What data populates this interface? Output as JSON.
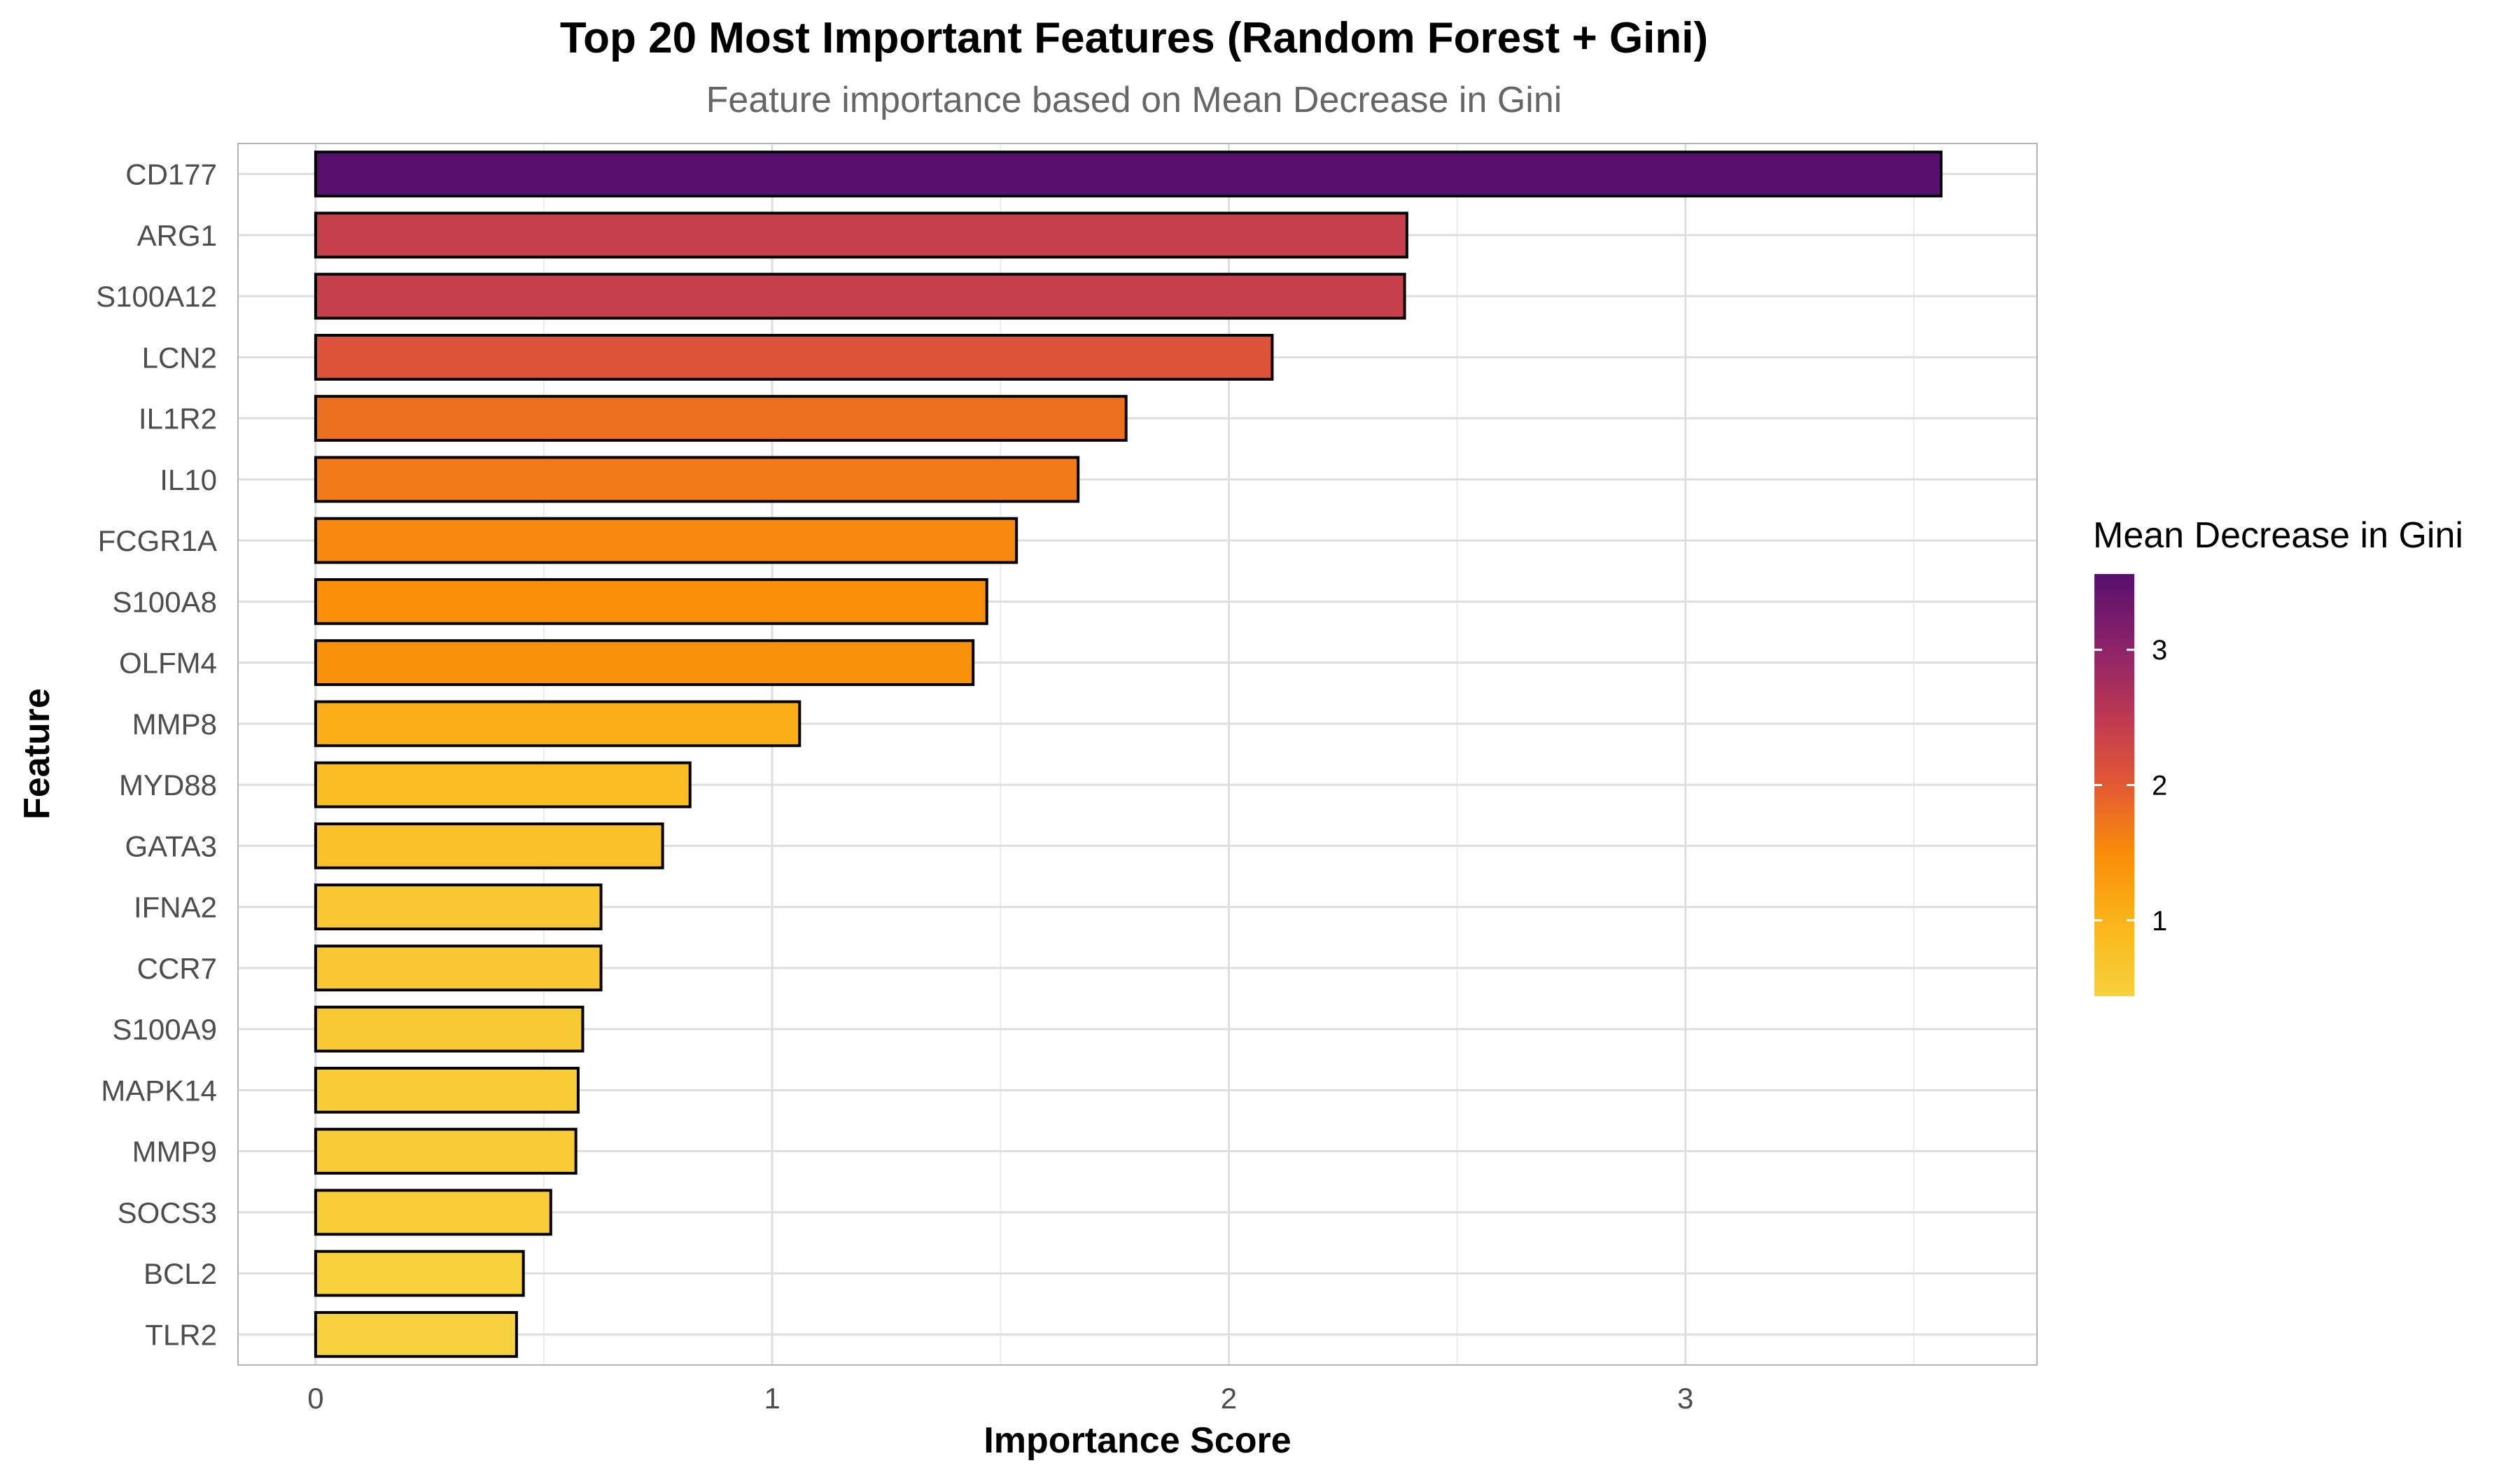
{
  "chart_data": {
    "type": "bar",
    "orientation": "horizontal",
    "title": "Top 20 Most Important Features (Random Forest + Gini)",
    "subtitle": "Feature importance based on Mean Decrease in Gini",
    "xlabel": "Importance Score",
    "ylabel": "Feature",
    "xlim": [
      -0.17,
      3.77
    ],
    "x_ticks": [
      "0",
      "1",
      "2",
      "3"
    ],
    "categories": [
      "CD177",
      "ARG1",
      "S100A12",
      "LCN2",
      "IL1R2",
      "IL10",
      "FCGR1A",
      "S100A8",
      "OLFM4",
      "MMP8",
      "MYD88",
      "GATA3",
      "IFNA2",
      "CCR7",
      "S100A9",
      "MAPK14",
      "MMP9",
      "SOCS3",
      "BCL2",
      "TLR2"
    ],
    "values": [
      3.56,
      2.39,
      2.385,
      2.095,
      1.775,
      1.67,
      1.535,
      1.47,
      1.44,
      1.06,
      0.82,
      0.76,
      0.625,
      0.625,
      0.585,
      0.575,
      0.57,
      0.515,
      0.455,
      0.44
    ],
    "grid": true,
    "legend": {
      "title": "Mean Decrease in Gini",
      "position": "right",
      "labels": [
        "1",
        "2",
        "3"
      ],
      "range": [
        0.44,
        3.56
      ]
    },
    "colors": {
      "palette": [
        "#f7d13d",
        "#fbb61a",
        "#f98e09",
        "#e35933",
        "#bc3754",
        "#8a226a",
        "#57106e"
      ],
      "bar_outline": "#000000",
      "grid": "#ebebeb",
      "panel_border": "#b3b3b3"
    }
  }
}
